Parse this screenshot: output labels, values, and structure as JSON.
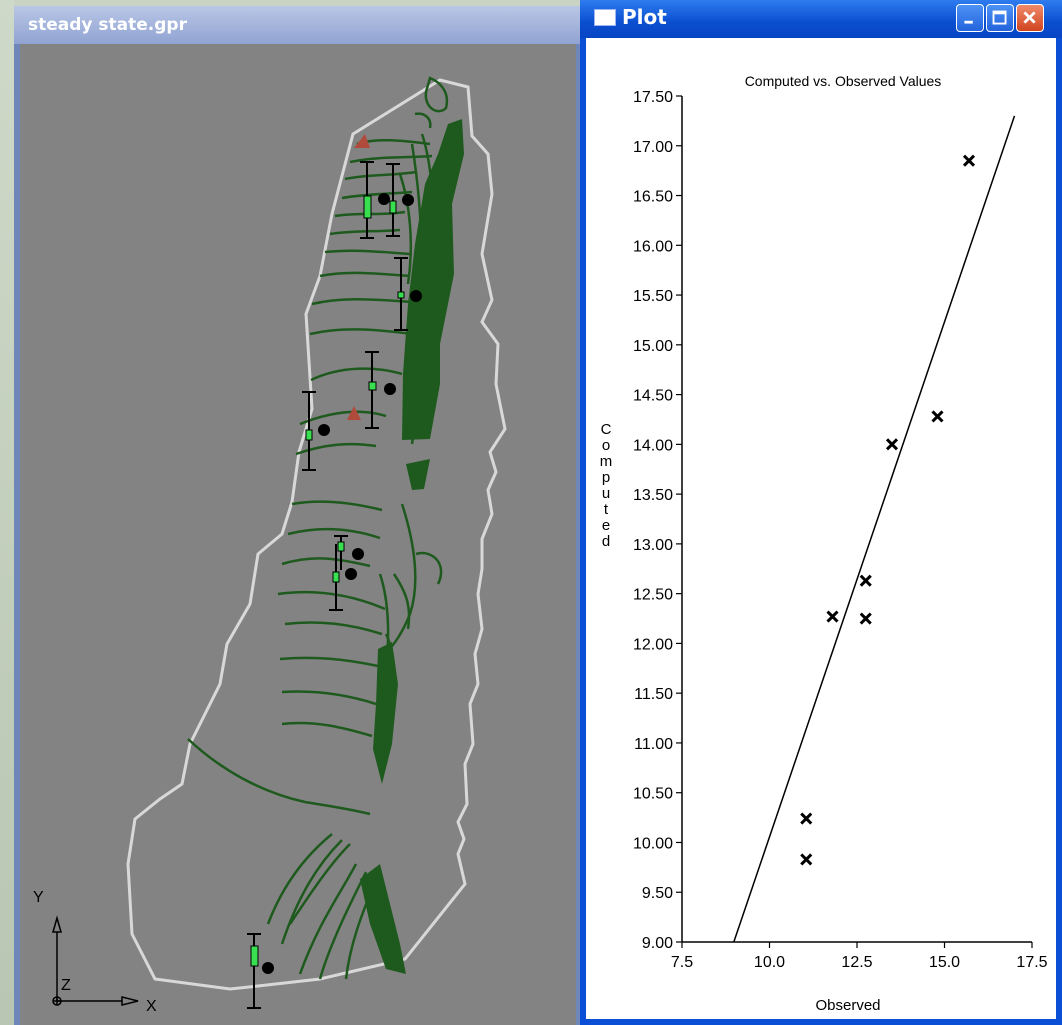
{
  "left_window": {
    "title": "steady state.gpr",
    "axis_labels": {
      "y": "Y",
      "z": "Z",
      "x": "X"
    }
  },
  "plot_window": {
    "title": "Plot",
    "buttons": {
      "minimize": "minimize",
      "maximize": "maximize",
      "close": "close"
    }
  },
  "colors": {
    "window_blue": "#0a4fd6",
    "contour_green": "#1e5a1e",
    "map_background": "#838383",
    "outline": "#d8d8d8"
  },
  "chart_data": {
    "type": "scatter",
    "title": "Computed vs. Observed Values",
    "xlabel": "Observed",
    "ylabel": "Computed",
    "xlim": [
      7.5,
      17.5
    ],
    "ylim": [
      9.0,
      17.5
    ],
    "x_ticks": [
      "7.5",
      "10.0",
      "12.5",
      "15.0",
      "17.5"
    ],
    "y_ticks": [
      "9.00",
      "9.50",
      "10.00",
      "10.50",
      "11.00",
      "11.50",
      "12.00",
      "12.50",
      "13.00",
      "13.50",
      "14.00",
      "14.50",
      "15.00",
      "15.50",
      "16.00",
      "16.50",
      "17.00",
      "17.50"
    ],
    "marker": "x",
    "points": [
      {
        "x": 15.7,
        "y": 16.85
      },
      {
        "x": 14.8,
        "y": 14.28
      },
      {
        "x": 13.5,
        "y": 14.0
      },
      {
        "x": 12.75,
        "y": 12.63
      },
      {
        "x": 11.8,
        "y": 12.27
      },
      {
        "x": 12.75,
        "y": 12.25
      },
      {
        "x": 11.05,
        "y": 10.24
      },
      {
        "x": 11.05,
        "y": 9.83
      }
    ],
    "fit_line": [
      {
        "x": 8.98,
        "y": 9.0
      },
      {
        "x": 17.0,
        "y": 17.3
      }
    ],
    "grid": false,
    "legend": "none"
  }
}
